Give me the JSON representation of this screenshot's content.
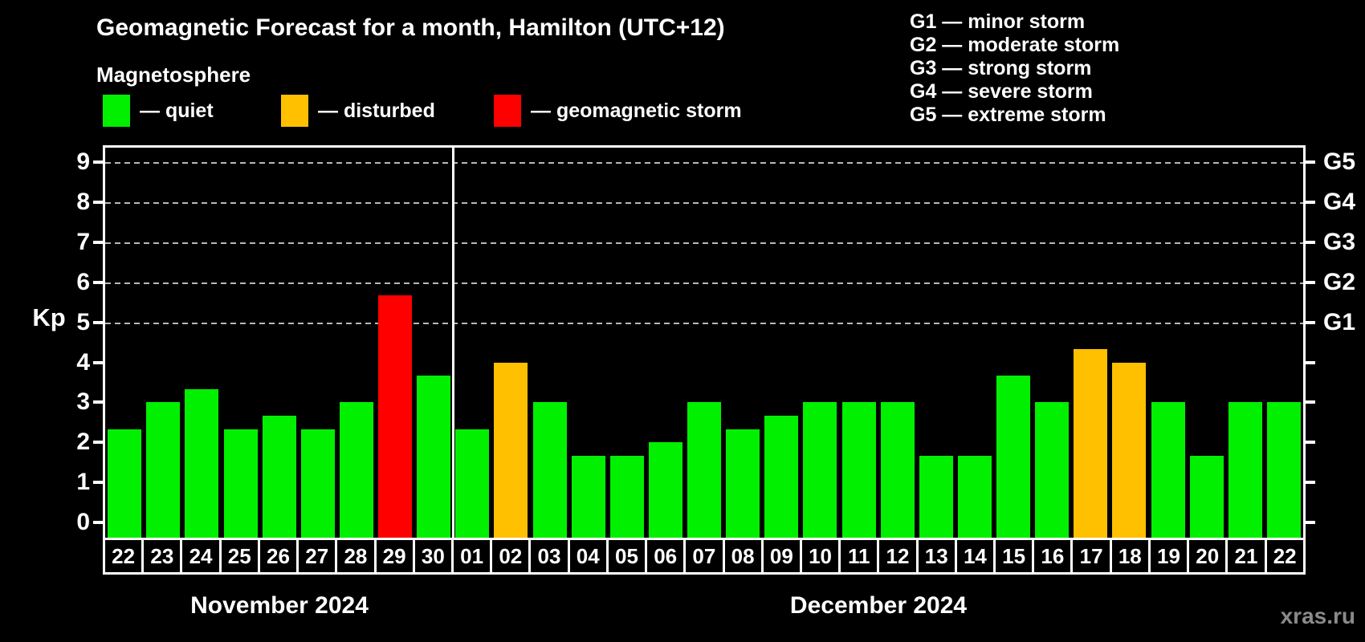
{
  "title": "Geomagnetic Forecast for a month, Hamilton (UTC+12)",
  "subtitle": "Magnetosphere",
  "legend": [
    {
      "name": "quiet",
      "label": "— quiet",
      "color": "#00f000"
    },
    {
      "name": "disturbed",
      "label": "— disturbed",
      "color": "#ffc000"
    },
    {
      "name": "storm",
      "label": "— geomagnetic storm",
      "color": "#ff0000"
    }
  ],
  "storm_levels": [
    "G1 — minor storm",
    "G2 — moderate storm",
    "G3 — strong storm",
    "G4 — severe storm",
    "G5 — extreme storm"
  ],
  "watermark": "xras.ru",
  "chart_data": {
    "type": "bar",
    "ylabel": "Kp",
    "ylim": [
      -0.38,
      9.36
    ],
    "y_ticks": [
      0,
      1,
      2,
      3,
      4,
      5,
      6,
      7,
      8,
      9
    ],
    "right_axis_labels": [
      {
        "kp": 5,
        "label": "G1"
      },
      {
        "kp": 6,
        "label": "G2"
      },
      {
        "kp": 7,
        "label": "G3"
      },
      {
        "kp": 8,
        "label": "G4"
      },
      {
        "kp": 9,
        "label": "G5"
      }
    ],
    "dashed_gridlines_at": [
      5,
      6,
      7,
      8,
      9
    ],
    "grid_color": "#b8b8b8",
    "months": [
      {
        "label": "November 2024",
        "num_days": 9
      },
      {
        "label": "December 2024",
        "num_days": 22
      }
    ],
    "categories": [
      "22",
      "23",
      "24",
      "25",
      "26",
      "27",
      "28",
      "29",
      "30",
      "01",
      "02",
      "03",
      "04",
      "05",
      "06",
      "07",
      "08",
      "09",
      "10",
      "11",
      "12",
      "13",
      "14",
      "15",
      "16",
      "17",
      "18",
      "19",
      "20",
      "21",
      "22"
    ],
    "values": [
      2.33,
      3,
      3.33,
      2.33,
      2.67,
      2.33,
      3,
      5.67,
      3.67,
      2.33,
      4,
      3,
      1.67,
      1.67,
      2,
      3,
      2.33,
      2.67,
      3,
      3,
      3,
      1.67,
      1.67,
      3.67,
      3,
      4.33,
      4,
      3,
      1.67,
      3,
      3
    ],
    "statuses": [
      "quiet",
      "quiet",
      "quiet",
      "quiet",
      "quiet",
      "quiet",
      "quiet",
      "storm",
      "quiet",
      "quiet",
      "disturbed",
      "quiet",
      "quiet",
      "quiet",
      "quiet",
      "quiet",
      "quiet",
      "quiet",
      "quiet",
      "quiet",
      "quiet",
      "quiet",
      "quiet",
      "quiet",
      "quiet",
      "disturbed",
      "disturbed",
      "quiet",
      "quiet",
      "quiet",
      "quiet"
    ],
    "status_colors": {
      "quiet": "#00f000",
      "disturbed": "#ffc000",
      "storm": "#ff0000"
    }
  }
}
